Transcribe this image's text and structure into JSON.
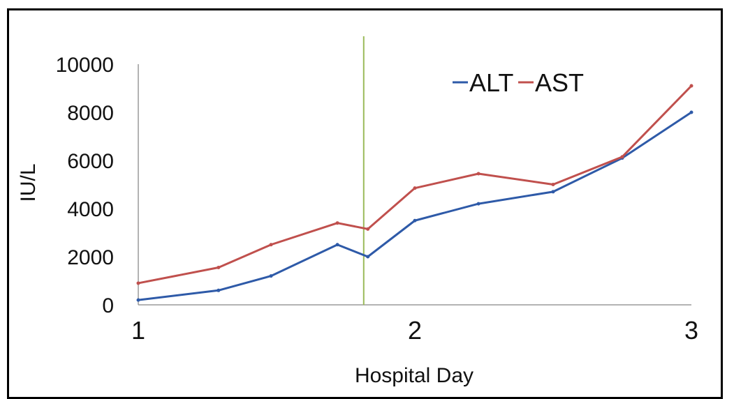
{
  "chart_data": {
    "type": "line",
    "title": "",
    "xlabel": "Hospital Day",
    "ylabel": "IU/L",
    "xlim": [
      1,
      3
    ],
    "ylim": [
      0,
      10000
    ],
    "x_ticks": [
      1,
      2,
      3
    ],
    "x_tick_labels": [
      "1",
      "2",
      "3"
    ],
    "y_ticks": [
      0,
      2000,
      4000,
      6000,
      8000,
      10000
    ],
    "y_tick_labels": [
      "0",
      "2000",
      "4000",
      "6000",
      "8000",
      "10000"
    ],
    "grid": false,
    "legend": "top-right",
    "vertical_marker": {
      "x": 1.8,
      "color": "#9bbb59"
    },
    "series": [
      {
        "name": "ALT",
        "color": "#2e5aa8",
        "x": [
          1.0,
          1.29,
          1.48,
          1.72,
          1.83,
          2.0,
          2.23,
          2.5,
          2.75,
          3.0
        ],
        "y": [
          200,
          600,
          1200,
          2500,
          2000,
          3500,
          4200,
          4700,
          6100,
          8000
        ]
      },
      {
        "name": "AST",
        "color": "#c0504d",
        "x": [
          1.0,
          1.29,
          1.48,
          1.72,
          1.83,
          2.0,
          2.23,
          2.5,
          2.75,
          3.0
        ],
        "y": [
          900,
          1550,
          2500,
          3400,
          3150,
          4850,
          5450,
          5000,
          6150,
          9100
        ]
      }
    ]
  }
}
